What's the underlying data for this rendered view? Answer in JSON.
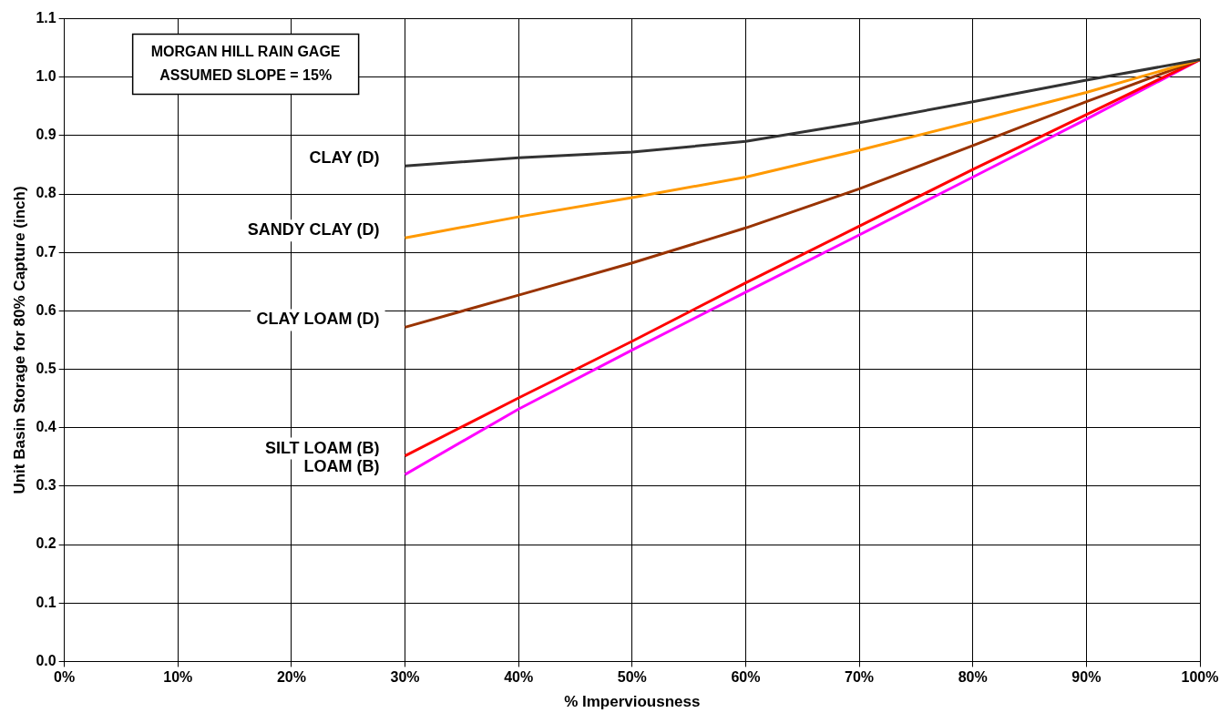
{
  "chart_data": {
    "type": "line",
    "xlabel": "% Imperviousness",
    "ylabel": "Unit Basin Storage for 80% Capture (inch)",
    "annotations": [
      "MORGAN HILL RAIN GAGE",
      "ASSUMED SLOPE = 15%"
    ],
    "x": [
      30,
      40,
      50,
      60,
      70,
      80,
      90,
      100
    ],
    "series": [
      {
        "name": "CLAY (D)",
        "color": "#333333",
        "values": [
          0.848,
          0.862,
          0.872,
          0.89,
          0.922,
          0.958,
          0.995,
          1.03
        ]
      },
      {
        "name": "SANDY CLAY (D)",
        "color": "#ff9900",
        "values": [
          0.725,
          0.761,
          0.794,
          0.829,
          0.875,
          0.924,
          0.974,
          1.03
        ]
      },
      {
        "name": "CLAY LOAM (D)",
        "color": "#993300",
        "values": [
          0.572,
          0.627,
          0.682,
          0.742,
          0.809,
          0.883,
          0.958,
          1.03
        ]
      },
      {
        "name": "SILT LOAM (B)",
        "color": "#ff0000",
        "values": [
          0.352,
          0.451,
          0.548,
          0.648,
          0.745,
          0.842,
          0.936,
          1.03
        ]
      },
      {
        "name": "LOAM (B)",
        "color": "#ff00ff",
        "values": [
          0.32,
          0.432,
          0.533,
          0.632,
          0.73,
          0.829,
          0.928,
          1.03
        ]
      }
    ],
    "xlim": [
      0,
      100
    ],
    "xticks": [
      {
        "value": 0,
        "label": "0%"
      },
      {
        "value": 10,
        "label": "10%"
      },
      {
        "value": 20,
        "label": "20%"
      },
      {
        "value": 30,
        "label": "30%"
      },
      {
        "value": 40,
        "label": "40%"
      },
      {
        "value": 50,
        "label": "50%"
      },
      {
        "value": 60,
        "label": "60%"
      },
      {
        "value": 70,
        "label": "70%"
      },
      {
        "value": 80,
        "label": "80%"
      },
      {
        "value": 90,
        "label": "90%"
      },
      {
        "value": 100,
        "label": "100%"
      }
    ],
    "ylim": [
      0,
      1.1
    ],
    "yticks": [
      {
        "value": 0,
        "label": "0.0"
      },
      {
        "value": 0.1,
        "label": "0.1"
      },
      {
        "value": 0.2,
        "label": "0.2"
      },
      {
        "value": 0.3,
        "label": "0.3"
      },
      {
        "value": 0.4,
        "label": "0.4"
      },
      {
        "value": 0.5,
        "label": "0.5"
      },
      {
        "value": 0.6,
        "label": "0.6"
      },
      {
        "value": 0.7,
        "label": "0.7"
      },
      {
        "value": 0.8,
        "label": "0.8"
      },
      {
        "value": 0.9,
        "label": "0.9"
      },
      {
        "value": 1,
        "label": "1.0"
      },
      {
        "value": 1.1,
        "label": "1.1"
      }
    ],
    "grid": true,
    "legend": false,
    "marker": "none",
    "line_style": "solid"
  }
}
